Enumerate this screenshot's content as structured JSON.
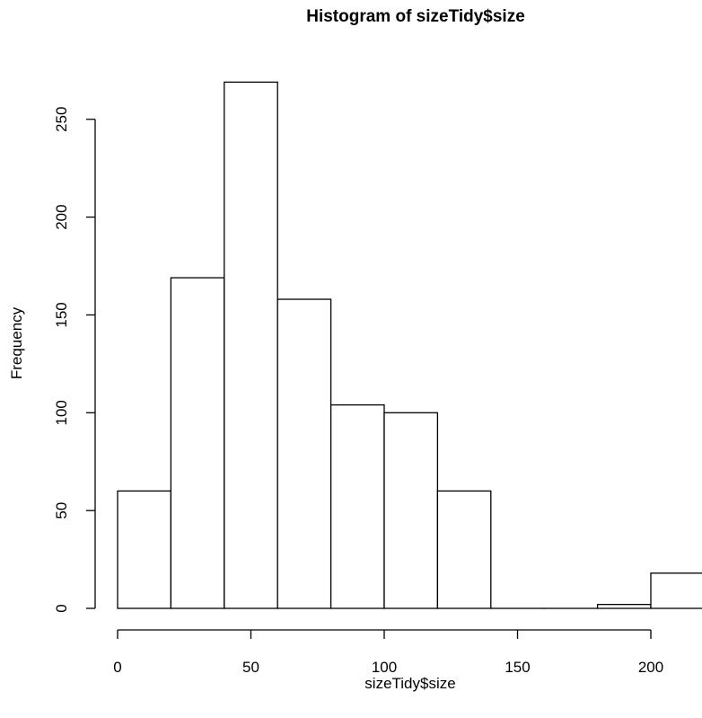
{
  "chart_data": {
    "type": "bar",
    "title": "Histogram of sizeTidy$size",
    "xlabel": "sizeTidy$size",
    "ylabel": "Frequency",
    "bins": [
      {
        "from": 0,
        "to": 20,
        "count": 60
      },
      {
        "from": 20,
        "to": 40,
        "count": 169
      },
      {
        "from": 40,
        "to": 60,
        "count": 269
      },
      {
        "from": 60,
        "to": 80,
        "count": 158
      },
      {
        "from": 80,
        "to": 100,
        "count": 104
      },
      {
        "from": 100,
        "to": 120,
        "count": 100
      },
      {
        "from": 120,
        "to": 140,
        "count": 60
      },
      {
        "from": 140,
        "to": 160,
        "count": 0
      },
      {
        "from": 160,
        "to": 180,
        "count": 0
      },
      {
        "from": 180,
        "to": 200,
        "count": 2
      },
      {
        "from": 200,
        "to": 220,
        "count": 18
      }
    ],
    "x_ticks": [
      0,
      50,
      100,
      150,
      200
    ],
    "y_ticks": [
      0,
      50,
      100,
      150,
      200,
      250
    ],
    "xlim": [
      0,
      220
    ],
    "ylim": [
      0,
      269
    ],
    "grid": false,
    "legend": "none"
  }
}
